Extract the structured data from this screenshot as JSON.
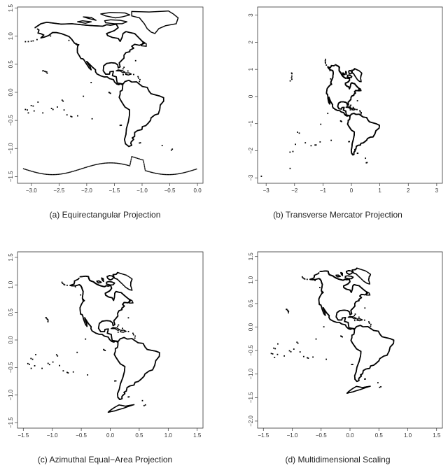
{
  "chart_data": [
    {
      "type": "scatter",
      "caption": "(a) Equirectangular Projection",
      "xlim": [
        -3.25,
        0.1
      ],
      "ylim": [
        -1.62,
        1.52
      ],
      "xticks": [
        -3.0,
        -2.5,
        -2.0,
        -1.5,
        -1.0,
        -0.5,
        0.0
      ],
      "xtick_labels": [
        "−3.0",
        "−2.5",
        "−2.0",
        "−1.5",
        "−1.0",
        "−0.5",
        "0.0"
      ],
      "yticks": [
        -1.5,
        -1.0,
        -0.5,
        0.0,
        0.5,
        1.0,
        1.5
      ],
      "ytick_labels": [
        "−1.5",
        "−1.0",
        "−0.5",
        "0.0",
        "0.5",
        "1.0",
        "1.5"
      ]
    },
    {
      "type": "scatter",
      "caption": "(b) Transverse Mercator Projection",
      "xlim": [
        -3.3,
        3.2
      ],
      "ylim": [
        -3.2,
        3.3
      ],
      "xticks": [
        -3,
        -2,
        -1,
        0,
        1,
        2,
        3
      ],
      "xtick_labels": [
        "−3",
        "−2",
        "−1",
        "0",
        "1",
        "2",
        "3"
      ],
      "yticks": [
        -3,
        -2,
        -1,
        0,
        1,
        2,
        3
      ],
      "ytick_labels": [
        "−3",
        "−2",
        "−1",
        "0",
        "1",
        "2",
        "3"
      ]
    },
    {
      "type": "scatter",
      "caption": "(c) Azimuthal Equal−Area Projection",
      "xlim": [
        -1.6,
        1.6
      ],
      "ylim": [
        -1.6,
        1.6
      ],
      "xticks": [
        -1.5,
        -1.0,
        -0.5,
        0.0,
        0.5,
        1.0,
        1.5
      ],
      "xtick_labels": [
        "−1.5",
        "−1.0",
        "−0.5",
        "0.0",
        "0.5",
        "1.0",
        "1.5"
      ],
      "yticks": [
        -1.5,
        -1.0,
        -0.5,
        0.0,
        0.5,
        1.0,
        1.5
      ],
      "ytick_labels": [
        "−1.5",
        "−1.0",
        "−0.5",
        "0.0",
        "0.5",
        "1.0",
        "1.5"
      ]
    },
    {
      "type": "scatter",
      "caption": "(d) Multidimensional Scaling",
      "xlim": [
        -1.6,
        1.6
      ],
      "ylim": [
        -2.15,
        1.6
      ],
      "xticks": [
        -1.5,
        -1.0,
        -0.5,
        0.0,
        0.5,
        1.0,
        1.5
      ],
      "xtick_labels": [
        "−1.5",
        "−1.0",
        "−0.5",
        "0.0",
        "0.5",
        "1.0",
        "1.5"
      ],
      "yticks": [
        -2.0,
        -1.5,
        -1.0,
        -0.5,
        0.0,
        0.5,
        1.0,
        1.5
      ],
      "ytick_labels": [
        "−2.0",
        "−1.5",
        "−1.0",
        "−0.5",
        "0.0",
        "0.5",
        "1.0",
        "1.5"
      ]
    }
  ]
}
